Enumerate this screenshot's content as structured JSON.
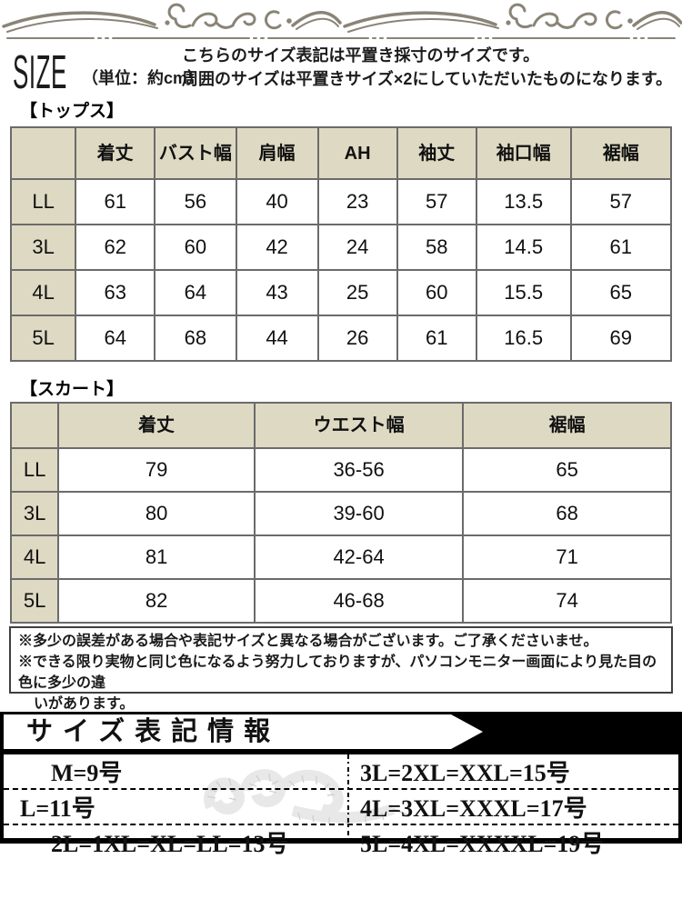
{
  "header": {
    "title": "SIZE",
    "unit": "（単位：約cm）",
    "desc1": "こちらのサイズ表記は平置き採寸のサイズです。",
    "desc2": "周囲のサイズは平置きサイズ×2にしていただいたものになります。"
  },
  "tops": {
    "label": "【トップス】",
    "columns": [
      "着丈",
      "バスト幅",
      "肩幅",
      "AH",
      "袖丈",
      "袖口幅",
      "裾幅"
    ],
    "rows": [
      {
        "size": "LL",
        "values": [
          "61",
          "56",
          "40",
          "23",
          "57",
          "13.5",
          "57"
        ]
      },
      {
        "size": "3L",
        "values": [
          "62",
          "60",
          "42",
          "24",
          "58",
          "14.5",
          "61"
        ]
      },
      {
        "size": "4L",
        "values": [
          "63",
          "64",
          "43",
          "25",
          "60",
          "15.5",
          "65"
        ]
      },
      {
        "size": "5L",
        "values": [
          "64",
          "68",
          "44",
          "26",
          "61",
          "16.5",
          "69"
        ]
      }
    ]
  },
  "skirt": {
    "label": "【スカート】",
    "columns": [
      "着丈",
      "ウエスト幅",
      "裾幅"
    ],
    "rows": [
      {
        "size": "LL",
        "values": [
          "79",
          "36-56",
          "65"
        ]
      },
      {
        "size": "3L",
        "values": [
          "80",
          "39-60",
          "68"
        ]
      },
      {
        "size": "4L",
        "values": [
          "81",
          "42-64",
          "71"
        ]
      },
      {
        "size": "5L",
        "values": [
          "82",
          "46-68",
          "74"
        ]
      }
    ]
  },
  "notes": {
    "lines": [
      "※多少の誤差がある場合や表記サイズと異なる場合がございます。ご了承くださいませ。",
      "※できる限り実物と同じ色になるよう努力しておりますが、パソコンモニター画面により見た目の色に多少の違",
      "いがあります。"
    ]
  },
  "size_info": {
    "title": "サイズ表記情報",
    "left_rows": [
      "M=9号",
      "L=11号",
      "2L=1XL=XL=LL=13号"
    ],
    "right_rows": [
      "3L=2XL=XXL=15号",
      "4L=3XL=XXXL=17号",
      "5L=4XL=XXXXL=19号"
    ]
  },
  "icons": {
    "ornament": "decorative-flourish",
    "tape": "measuring-tape"
  },
  "colors": {
    "table_header_bg": "#ded9c2",
    "table_border": "#6b6b6b",
    "notes_border": "#3f3f3f",
    "ornament": "#8a8477",
    "panel_bg": "#000000",
    "panel_banner_bg": "#ffffff",
    "text": "#111111"
  }
}
